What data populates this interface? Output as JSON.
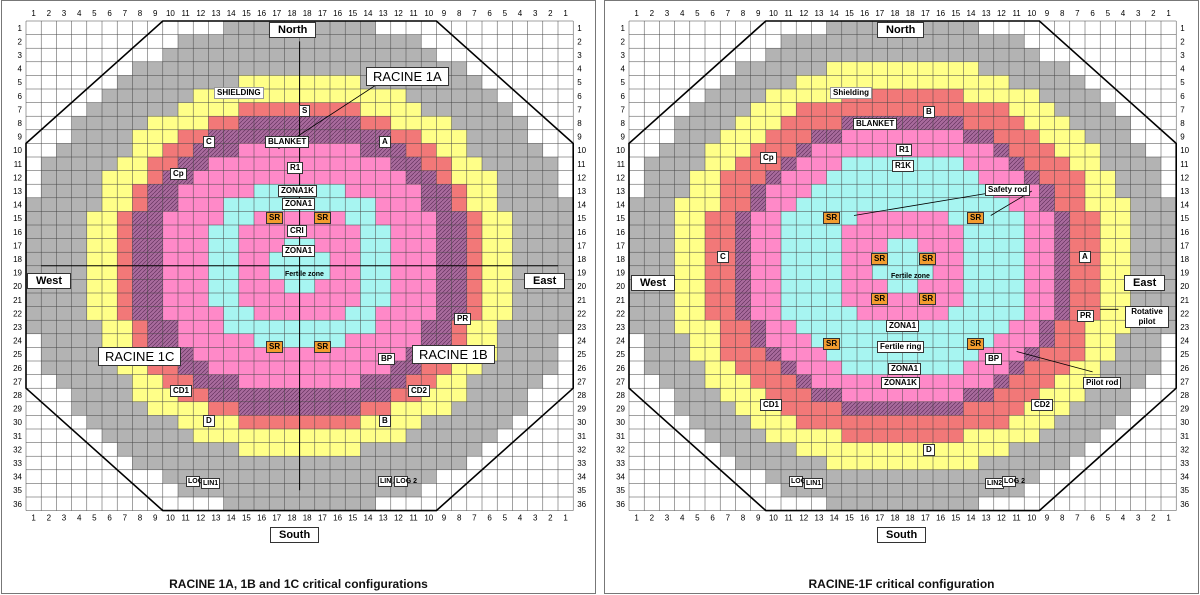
{
  "layout_grid": {
    "cols": 36,
    "rows": 36
  },
  "colors": {
    "shielding": "#b3b3b3",
    "blanket": "#ffff88",
    "r1": "#f27878",
    "zona1k": "#a86a9c",
    "zona1": "#ff89c8",
    "cri": "#a7f5f1",
    "fertile_ring": "#a7f5f1",
    "fertile_zone": "#a7f5f1",
    "safety_rod": "#f39c2e",
    "grid_line": "#444444",
    "outline": "#000000"
  },
  "column_numbers": [
    "1",
    "2",
    "3",
    "4",
    "5",
    "6",
    "7",
    "8",
    "9",
    "10",
    "11",
    "12",
    "13",
    "14",
    "15",
    "16",
    "17",
    "18",
    "18",
    "17",
    "16",
    "15",
    "14",
    "13",
    "12",
    "11",
    "10",
    "9",
    "8",
    "7",
    "6",
    "5",
    "4",
    "3",
    "2",
    "1"
  ],
  "row_numbers": [
    "1",
    "2",
    "3",
    "4",
    "5",
    "6",
    "7",
    "8",
    "9",
    "10",
    "11",
    "12",
    "13",
    "14",
    "15",
    "16",
    "17",
    "18",
    "19",
    "20",
    "21",
    "22",
    "23",
    "24",
    "25",
    "26",
    "27",
    "28",
    "29",
    "30",
    "31",
    "32",
    "33",
    "34",
    "35",
    "36"
  ],
  "left": {
    "caption": "RACINE 1A, 1B and 1C critical configurations",
    "north": "North",
    "south": "South",
    "west": "West",
    "east": "East",
    "racine_1a": "RACINE 1A",
    "racine_1b": "RACINE 1B",
    "racine_1c": "RACINE 1C",
    "shielding": "SHIELDING",
    "blanket": "BLANKET",
    "r1": "R1",
    "zona1k": "ZONA1K",
    "zona1_top": "ZONA1",
    "cri": "CRI",
    "zona1_inner": "ZONA1",
    "fertile_zone": "Fertile zone",
    "s": "S",
    "a": "A",
    "b": "B",
    "c": "C",
    "d": "D",
    "cp": "Cp",
    "pr": "PR",
    "bp": "BP",
    "cd1": "CD1",
    "cd2": "CD2",
    "sr": "SR",
    "log1": "LOG 1",
    "lin1": "LIN1",
    "lin2": "LIN 2",
    "log2": "LOG 2"
  },
  "right": {
    "caption": "RACINE-1F critical configuration",
    "north": "North",
    "south": "South",
    "west": "West",
    "east": "East",
    "shielding": "Shielding",
    "blanket": "BLANKET",
    "r1": "R1",
    "r1k": "R1K",
    "zona1_mid": "ZONA1",
    "fertile_ring": "Fertile ring",
    "zona1_low": "ZONA1",
    "zona1k": "ZONA1K",
    "fertile_zone": "Fertile zone",
    "safety_rod": "Safety rod",
    "rotative_pilot": "Rotative pilot",
    "pilot_rod": "Pilot rod",
    "b": "B",
    "c": "C",
    "a": "A",
    "d": "D",
    "cp": "Cp",
    "pr": "PR",
    "bp": "BP",
    "cd1": "CD1",
    "cd2": "CD2",
    "sr": "SR",
    "log1": "LOG 1",
    "lin1": "LIN1",
    "lin2": "LIN2",
    "log2": "LOG 2"
  }
}
